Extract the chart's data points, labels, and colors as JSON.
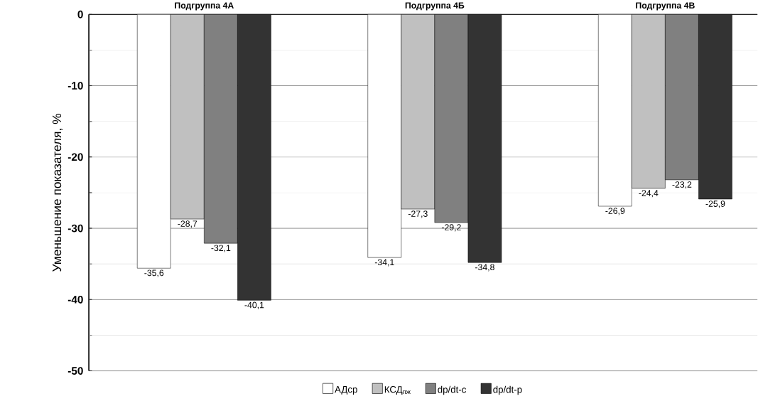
{
  "chart_data": {
    "type": "bar",
    "ylabel": "Уменьшение показателя, %",
    "categories": [
      "Подгруппа 4А",
      "Подгруппа 4Б",
      "Подгруппа 4В"
    ],
    "series": [
      {
        "name": "АДср",
        "color": "#ffffff",
        "values": [
          -35.6,
          -34.1,
          -26.9
        ],
        "value_labels": [
          "-35,6",
          "-34,1",
          "-26,9"
        ]
      },
      {
        "name": "КСД$_{пж}$",
        "color": "#c0c0c0",
        "values": [
          -28.7,
          -27.3,
          -24.4
        ],
        "value_labels": [
          "-28,7",
          "-27,3",
          "-24,4"
        ]
      },
      {
        "name": "dp/dt-c",
        "color": "#808080",
        "values": [
          -32.1,
          -29.2,
          -23.2
        ],
        "value_labels": [
          "-32,1",
          "-29,2",
          "-23,2"
        ]
      },
      {
        "name": "dp/dt-p",
        "color": "#333333",
        "values": [
          -40.1,
          -34.8,
          -25.9
        ],
        "value_labels": [
          "-40,1",
          "-34,8",
          "-25,9"
        ]
      }
    ],
    "ylim": [
      -50,
      0
    ],
    "yticks": [
      -50,
      {
        "value": -45,
        "label": null
      },
      -40,
      {
        "value": -35,
        "label": null
      },
      -30,
      {
        "value": -25,
        "label": null
      },
      -20,
      {
        "value": -15,
        "label": null
      },
      -10,
      {
        "value": -5,
        "label": null
      },
      0
    ],
    "grid": "y",
    "legend": "bottom"
  }
}
